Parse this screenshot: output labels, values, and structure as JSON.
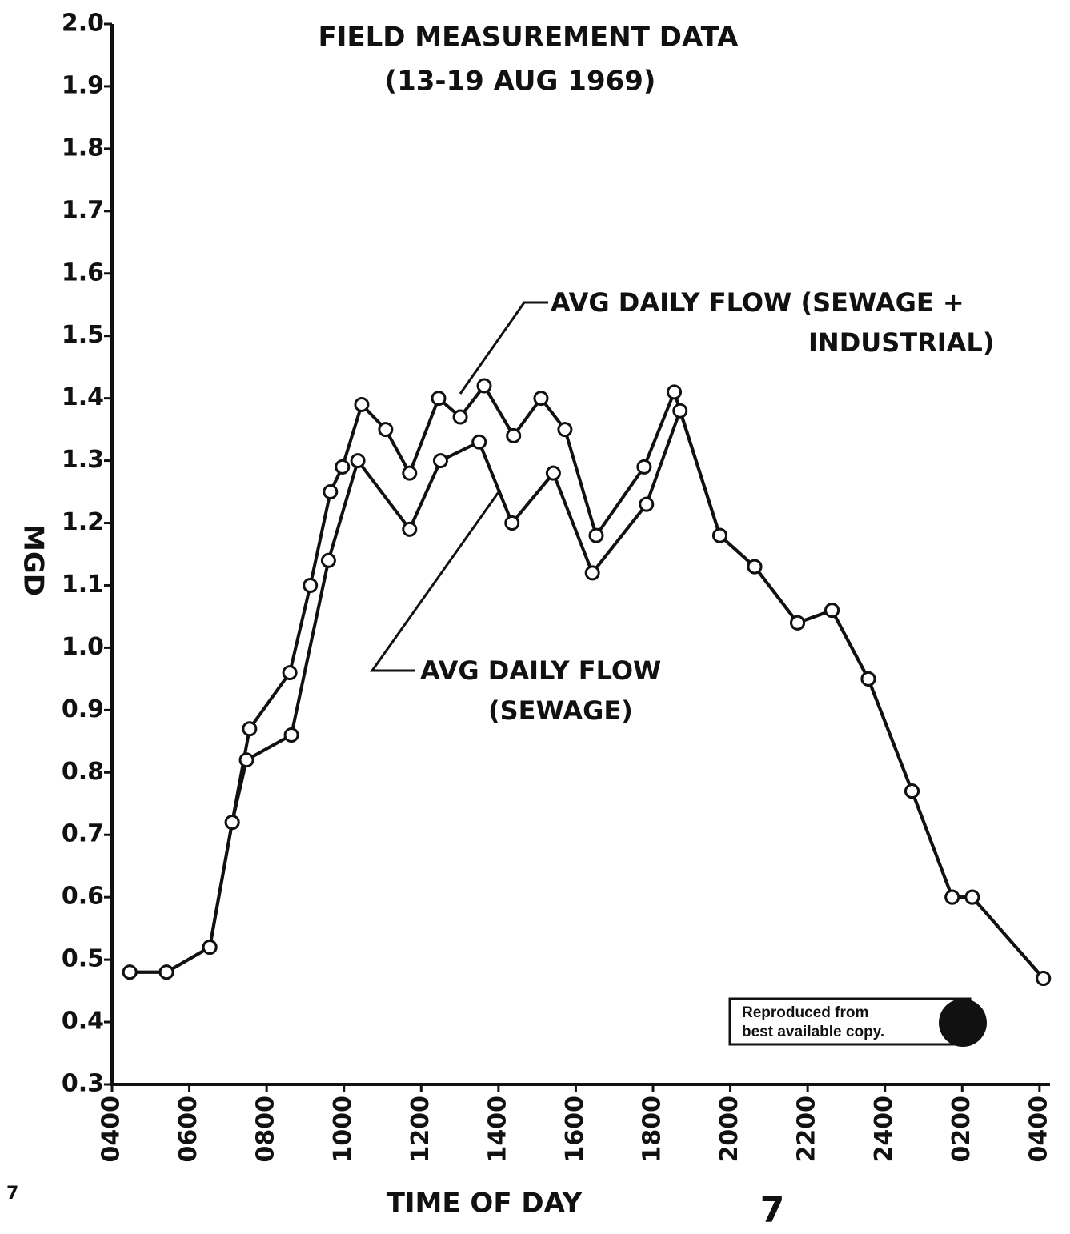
{
  "chart_data": {
    "type": "line",
    "title_lines": [
      "FIELD MEASUREMENT DATA",
      "(13-19 AUG 1969)"
    ],
    "y_label": "MGD",
    "x_label": "TIME OF DAY",
    "xlim": [
      4,
      28.5
    ],
    "xticks": [
      {
        "value": 4,
        "label": "0400"
      },
      {
        "value": 6,
        "label": "0600"
      },
      {
        "value": 8,
        "label": "0800"
      },
      {
        "value": 10,
        "label": "1000"
      },
      {
        "value": 12,
        "label": "1200"
      },
      {
        "value": 14,
        "label": "1400"
      },
      {
        "value": 16,
        "label": "1600"
      },
      {
        "value": 18,
        "label": "1800"
      },
      {
        "value": 20,
        "label": "2000"
      },
      {
        "value": 22,
        "label": "2200"
      },
      {
        "value": 24,
        "label": "2400"
      },
      {
        "value": 26,
        "label": "0200"
      },
      {
        "value": 28,
        "label": "0400"
      }
    ],
    "ylim": [
      0.3,
      2.0
    ],
    "yticks": [
      0.3,
      0.4,
      0.5,
      0.6,
      0.7,
      0.8,
      0.9,
      {
        "value": 1.0,
        "label": "1.0"
      },
      1.1,
      1.2,
      1.3,
      1.4,
      1.5,
      1.6,
      1.7,
      1.8,
      1.9,
      {
        "value": 2.0,
        "label": "2.0"
      }
    ],
    "series": [
      {
        "color": "#111111",
        "x": [
          4.46,
          5.41,
          6.53,
          7.11,
          7.56,
          8.6,
          9.13,
          9.65,
          9.96,
          10.46,
          11.08,
          11.7,
          12.45,
          13.01,
          13.63,
          14.39,
          15.1,
          15.72,
          16.53,
          17.77,
          18.55,
          19.73,
          20.63,
          21.74,
          22.63,
          23.57,
          24.7,
          25.74,
          26.26,
          28.1
        ],
        "values": [
          0.48,
          0.48,
          0.52,
          0.72,
          0.87,
          0.96,
          1.1,
          1.25,
          1.29,
          1.39,
          1.35,
          1.28,
          1.4,
          1.37,
          1.42,
          1.34,
          1.4,
          1.35,
          1.18,
          1.29,
          1.41,
          1.18,
          1.13,
          1.04,
          1.06,
          0.95,
          0.77,
          0.6,
          0.6,
          0.47
        ]
      },
      {
        "color": "#111111",
        "x": [
          4.46,
          5.41,
          6.53,
          7.11,
          7.48,
          8.64,
          9.6,
          10.36,
          11.7,
          12.5,
          13.5,
          14.35,
          15.42,
          16.43,
          17.83,
          18.7,
          19.73,
          20.63,
          21.74,
          22.63,
          23.57,
          24.7,
          25.74,
          26.26,
          28.1
        ],
        "values": [
          0.48,
          0.48,
          0.52,
          0.72,
          0.82,
          0.86,
          1.14,
          1.3,
          1.19,
          1.3,
          1.33,
          1.2,
          1.28,
          1.12,
          1.23,
          1.38,
          1.18,
          1.13,
          1.04,
          1.06,
          0.95,
          0.77,
          0.6,
          0.6,
          0.47
        ]
      }
    ],
    "annotations": [
      {
        "lines": [
          "AVG DAILY FLOW (SEWAGE +",
          "INDUSTRIAL)"
        ]
      },
      {
        "lines": [
          "AVG DAILY FLOW",
          "(SEWAGE)"
        ]
      }
    ],
    "stamp": [
      "Reproduced from",
      "best available copy."
    ],
    "page_marks": [
      "7",
      "7"
    ]
  }
}
